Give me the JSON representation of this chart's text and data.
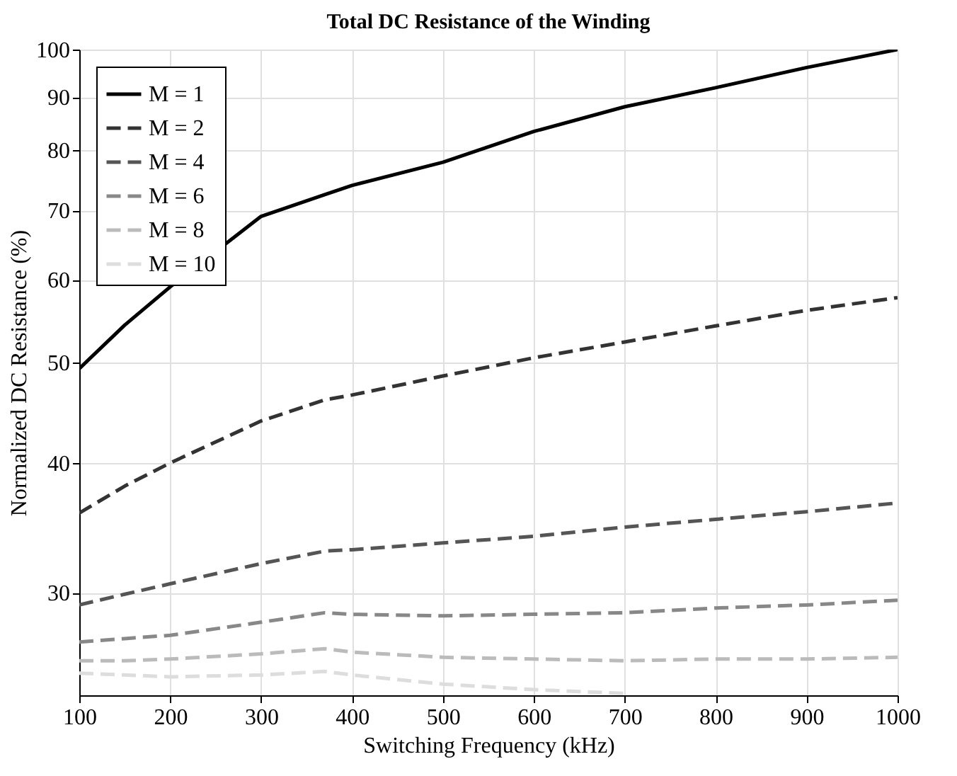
{
  "chart_data": {
    "type": "line",
    "title": "Total DC Resistance of the Winding",
    "xlabel": "Switching Frequency (kHz)",
    "ylabel": "Normalized DC Resistance (%)",
    "x": [
      100,
      150,
      200,
      300,
      370,
      400,
      500,
      600,
      700,
      800,
      900,
      1000
    ],
    "series": [
      {
        "name": "M = 1",
        "color": "#000000",
        "line_style": "solid",
        "values": [
          49.3,
          54.3,
          59.1,
          69.1,
          72.5,
          74.0,
          77.9,
          83.4,
          88.1,
          91.9,
          96.1,
          100
        ]
      },
      {
        "name": "M = 2",
        "color": "#333333",
        "line_style": "dashed",
        "values": [
          35.8,
          38.0,
          40.0,
          43.9,
          46.0,
          46.5,
          48.5,
          50.5,
          52.3,
          54.2,
          56.1,
          57.7
        ]
      },
      {
        "name": "M = 4",
        "color": "#555555",
        "line_style": "dashed",
        "values": [
          29.2,
          29.9,
          30.6,
          32.0,
          32.9,
          33.0,
          33.5,
          34.0,
          34.7,
          35.3,
          35.9,
          36.6
        ]
      },
      {
        "name": "M = 6",
        "color": "#888888",
        "line_style": "dashed",
        "values": [
          26.9,
          27.1,
          27.3,
          28.1,
          28.7,
          28.6,
          28.5,
          28.6,
          28.7,
          29.0,
          29.2,
          29.5
        ]
      },
      {
        "name": "M = 8",
        "color": "#bbbbbb",
        "line_style": "dashed",
        "values": [
          25.8,
          25.8,
          25.9,
          26.2,
          26.5,
          26.3,
          26.0,
          25.9,
          25.8,
          25.9,
          25.9,
          26.0
        ]
      },
      {
        "name": "M = 10",
        "color": "#dddddd",
        "line_style": "dashed",
        "values": [
          25.1,
          25.0,
          24.9,
          25.0,
          25.2,
          25.0,
          24.5,
          24.2,
          24.0,
          null,
          null,
          null
        ]
      }
    ],
    "xlim": [
      100,
      1000
    ],
    "xticks": [
      100,
      200,
      300,
      400,
      500,
      600,
      700,
      800,
      900,
      1000
    ],
    "ylim": [
      23.9,
      100
    ],
    "yticks": [
      30,
      40,
      50,
      60,
      70,
      80,
      90,
      100
    ],
    "log": "y",
    "grid": true,
    "legend": "top left"
  }
}
